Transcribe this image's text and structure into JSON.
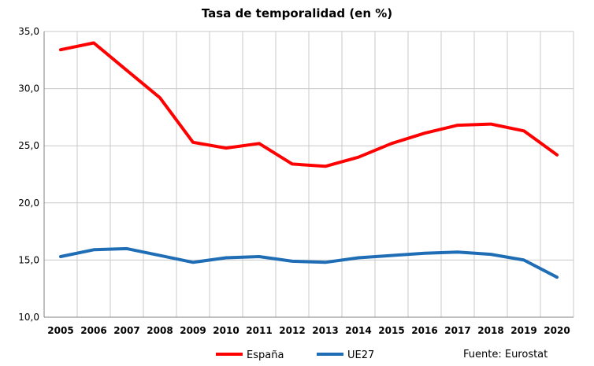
{
  "chart_data": {
    "type": "line",
    "title": "Tasa de temporalidad (en %)",
    "xlabel": "",
    "ylabel": "",
    "categories": [
      "2005",
      "2006",
      "2007",
      "2008",
      "2009",
      "2010",
      "2011",
      "2012",
      "2013",
      "2014",
      "2015",
      "2016",
      "2017",
      "2018",
      "2019",
      "2020"
    ],
    "ylim": [
      10,
      35
    ],
    "yticks": [
      "10,0",
      "15,0",
      "20,0",
      "25,0",
      "30,0",
      "35,0"
    ],
    "ytick_values": [
      10,
      15,
      20,
      25,
      30,
      35
    ],
    "grid": true,
    "legend_position": "bottom-left",
    "series": [
      {
        "name": "España",
        "color": "#ff0000",
        "values": [
          33.4,
          34.0,
          31.6,
          29.2,
          25.3,
          24.8,
          25.2,
          23.4,
          23.2,
          24.0,
          25.2,
          26.1,
          26.8,
          26.9,
          26.3,
          24.2
        ]
      },
      {
        "name": "UE27",
        "color": "#1f6db5",
        "values": [
          15.3,
          15.9,
          16.0,
          15.4,
          14.8,
          15.2,
          15.3,
          14.9,
          14.8,
          15.2,
          15.4,
          15.6,
          15.7,
          15.5,
          15.0,
          13.5
        ]
      }
    ],
    "source": "Fuente: Eurostat"
  }
}
